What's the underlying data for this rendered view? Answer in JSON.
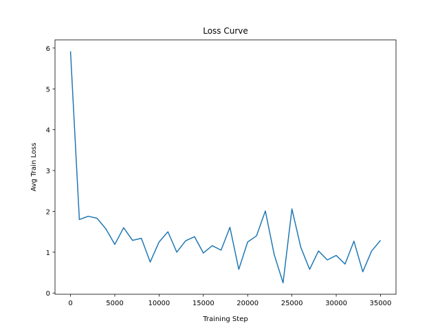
{
  "chart_data": {
    "type": "line",
    "title": "Loss Curve",
    "xlabel": "Training Step",
    "ylabel": "Avg Train Loss",
    "xlim": [
      -1750,
      36750
    ],
    "ylim": [
      -0.03,
      6.2
    ],
    "xticks": [
      0,
      5000,
      10000,
      15000,
      20000,
      25000,
      30000,
      35000
    ],
    "yticks": [
      0,
      1,
      2,
      3,
      4,
      5,
      6
    ],
    "grid": false,
    "legend": "none",
    "series": [
      {
        "color": "#1f77b4",
        "x": [
          0,
          1000,
          2000,
          3000,
          4000,
          5000,
          6000,
          7000,
          8000,
          9000,
          10000,
          11000,
          12000,
          13000,
          14000,
          15000,
          16000,
          17000,
          18000,
          19000,
          20000,
          21000,
          22000,
          23000,
          24000,
          25000,
          26000,
          27000,
          28000,
          29000,
          30000,
          31000,
          32000,
          33000,
          34000,
          35000
        ],
        "y": [
          5.92,
          1.8,
          1.88,
          1.83,
          1.57,
          1.19,
          1.6,
          1.29,
          1.34,
          0.76,
          1.25,
          1.5,
          1.0,
          1.28,
          1.38,
          0.98,
          1.16,
          1.05,
          1.61,
          0.58,
          1.25,
          1.4,
          2.01,
          0.94,
          0.25,
          2.06,
          1.12,
          0.58,
          1.03,
          0.81,
          0.92,
          0.71,
          1.27,
          0.52,
          1.03,
          1.29
        ]
      }
    ]
  }
}
